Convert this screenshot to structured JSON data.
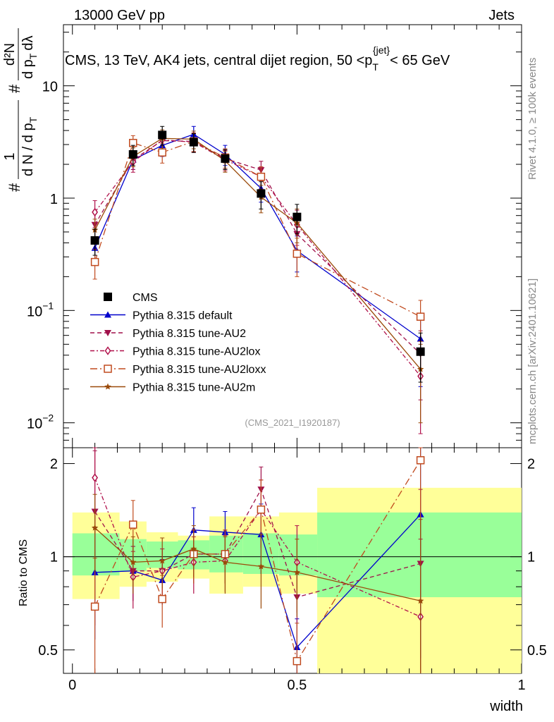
{
  "header": {
    "left": "13000 GeV pp",
    "right": "Jets"
  },
  "side_labels": {
    "rivet": "Rivet 4.1.0, ≥ 100k events",
    "mcplots": "mcplots.cern.ch [arXiv:2401.10621]"
  },
  "colors": {
    "CMS": "#000000",
    "default": "#0000cc",
    "AU2": "#a0104a",
    "AU2lox": "#b0104a",
    "AU2loxx": "#c04a1e",
    "AU2m": "#9a4a0a",
    "band_inner": "#99ff99",
    "band_outer": "#ffff99"
  },
  "chart_data": [
    {
      "type": "line",
      "panel": "main",
      "title": "CMS, 13 TeV, AK4 jets, central dijet region, 50 <p_T^{jet}< 65 GeV",
      "title_parts": {
        "pre": "CMS, 13 TeV, AK4 jets, central dijet region, 50 <p",
        "sub": "T",
        "sup": "{jet}",
        "post": "< 65 GeV"
      },
      "ylabel": "1/dN/dp_T # d²N/(dp_T dλ)",
      "ylabel_parts": {
        "hash": "#",
        "one": "1",
        "dN": "d N / d p",
        "T": "T",
        "d2N": "d²N",
        "dpdl": "d p",
        "dl": "dλ"
      },
      "yscale": "log",
      "ylim": [
        0.006,
        35
      ],
      "xlim": [
        -0.02,
        1.0
      ],
      "yticks": [
        {
          "v": 0.01,
          "label": "10",
          "exp": "−2"
        },
        {
          "v": 0.1,
          "label": "10",
          "exp": "−1"
        },
        {
          "v": 1,
          "label": "1",
          "exp": ""
        },
        {
          "v": 10,
          "label": "10",
          "exp": ""
        }
      ],
      "watermark": "(CMS_2021_I1920187)",
      "x": [
        0.05,
        0.135,
        0.2,
        0.27,
        0.34,
        0.42,
        0.5,
        0.775
      ],
      "series": [
        {
          "name": "CMS",
          "key": "CMS",
          "marker": "square-filled",
          "line": "none",
          "values": [
            0.42,
            2.45,
            3.65,
            3.15,
            2.25,
            1.1,
            0.68,
            0.043
          ],
          "err": [
            0.11,
            0.5,
            0.7,
            0.6,
            0.45,
            0.3,
            0.2,
            0.02
          ]
        },
        {
          "name": "Pythia 8.315 default",
          "key": "default",
          "marker": "triangle-up",
          "line": "solid",
          "values": [
            0.36,
            2.2,
            2.95,
            3.7,
            2.45,
            1.22,
            0.34,
            0.056
          ],
          "err": [
            0.09,
            0.4,
            0.6,
            0.65,
            0.5,
            0.3,
            0.12,
            0.035
          ]
        },
        {
          "name": "Pythia 8.315 tune-AU2",
          "key": "AU2",
          "marker": "triangle-down",
          "line": "dashed",
          "values": [
            0.58,
            2.2,
            3.25,
            3.2,
            2.25,
            1.78,
            0.48,
            0.041
          ],
          "err": [
            0.15,
            0.4,
            0.6,
            0.6,
            0.45,
            0.35,
            0.15,
            0.025
          ]
        },
        {
          "name": "Pythia 8.315 tune-AU2lox",
          "key": "AU2lox",
          "marker": "diamond-open",
          "line": "dashdot",
          "values": [
            0.75,
            2.1,
            3.3,
            3.15,
            2.2,
            1.55,
            0.58,
            0.026
          ],
          "err": [
            0.2,
            0.4,
            0.6,
            0.6,
            0.45,
            0.35,
            0.2,
            0.018
          ]
        },
        {
          "name": "Pythia 8.315 tune-AU2loxx",
          "key": "AU2loxx",
          "marker": "square-open",
          "line": "longdashdot",
          "values": [
            0.27,
            3.1,
            2.55,
            3.2,
            2.3,
            1.55,
            0.32,
            0.088
          ],
          "err": [
            0.08,
            0.5,
            0.5,
            0.6,
            0.45,
            0.35,
            0.12,
            0.035
          ]
        },
        {
          "name": "Pythia 8.315 tune-AU2m",
          "key": "AU2m",
          "marker": "star",
          "line": "solid",
          "values": [
            0.52,
            2.35,
            3.4,
            3.35,
            2.15,
            1.02,
            0.6,
            0.03
          ],
          "err": [
            0.13,
            0.45,
            0.65,
            0.6,
            0.45,
            0.28,
            0.2,
            0.02
          ]
        }
      ],
      "legend": [
        "CMS",
        "Pythia 8.315 default",
        "Pythia 8.315 tune-AU2",
        "Pythia 8.315 tune-AU2lox",
        "Pythia 8.315 tune-AU2loxx",
        "Pythia 8.315 tune-AU2m"
      ],
      "legend_placement": "bottom-left"
    },
    {
      "type": "line",
      "panel": "ratio",
      "ylabel": "Ratio to CMS",
      "xlabel": "width",
      "ylim": [
        0.42,
        2.25
      ],
      "xlim": [
        -0.02,
        1.0
      ],
      "yscale": "log",
      "yticks": [
        {
          "v": 0.5,
          "label": "0.5"
        },
        {
          "v": 1,
          "label": "1"
        },
        {
          "v": 2,
          "label": "2"
        }
      ],
      "xticks": [
        {
          "v": 0,
          "label": "0"
        },
        {
          "v": 0.5,
          "label": "0.5"
        },
        {
          "v": 1,
          "label": "1"
        }
      ],
      "bands": [
        {
          "x0": 0.0,
          "x1": 0.105,
          "inner": [
            0.87,
            1.19
          ],
          "outer": [
            0.73,
            1.39
          ]
        },
        {
          "x0": 0.105,
          "x1": 0.165,
          "inner": [
            0.9,
            1.14
          ],
          "outer": [
            0.8,
            1.3
          ]
        },
        {
          "x0": 0.165,
          "x1": 0.235,
          "inner": [
            0.92,
            1.12
          ],
          "outer": [
            0.83,
            1.2
          ]
        },
        {
          "x0": 0.235,
          "x1": 0.305,
          "inner": [
            0.91,
            1.13
          ],
          "outer": [
            0.85,
            1.17
          ]
        },
        {
          "x0": 0.305,
          "x1": 0.38,
          "inner": [
            0.89,
            1.17
          ],
          "outer": [
            0.76,
            1.35
          ]
        },
        {
          "x0": 0.38,
          "x1": 0.46,
          "inner": [
            0.88,
            1.19
          ],
          "outer": [
            0.8,
            1.35
          ]
        },
        {
          "x0": 0.46,
          "x1": 0.545,
          "inner": [
            0.87,
            1.18
          ],
          "outer": [
            0.76,
            1.39
          ]
        },
        {
          "x0": 0.545,
          "x1": 1.0,
          "inner": [
            0.74,
            1.39
          ],
          "outer": [
            0.42,
            1.67
          ]
        }
      ],
      "x": [
        0.05,
        0.135,
        0.2,
        0.27,
        0.34,
        0.42,
        0.5,
        0.775
      ],
      "series": [
        {
          "name": "Pythia 8.315 default",
          "key": "default",
          "values": [
            0.89,
            0.9,
            0.84,
            1.22,
            1.2,
            1.18,
            0.51,
            1.37
          ],
          "err": [
            0.35,
            0.18,
            0.14,
            0.22,
            0.2,
            0.3,
            0.12,
            0.9
          ]
        },
        {
          "name": "Pythia 8.315 tune-AU2",
          "key": "AU2",
          "values": [
            1.4,
            0.9,
            0.9,
            1.02,
            1.02,
            1.65,
            0.74,
            0.95
          ],
          "err": [
            0.8,
            0.18,
            0.16,
            0.2,
            0.2,
            0.3,
            0.22,
            0.7
          ]
        },
        {
          "name": "Pythia 8.315 tune-AU2lox",
          "key": "AU2lox",
          "values": [
            1.8,
            0.86,
            0.9,
            0.96,
            0.97,
            1.42,
            0.96,
            0.64
          ],
          "err": [
            0.6,
            0.18,
            0.16,
            0.2,
            0.2,
            0.35,
            0.3,
            0.5
          ]
        },
        {
          "name": "Pythia 8.315 tune-AU2loxx",
          "key": "AU2loxx",
          "values": [
            0.69,
            1.27,
            0.73,
            1.02,
            1.02,
            1.42,
            0.46,
            2.05
          ],
          "err": [
            0.3,
            0.25,
            0.14,
            0.2,
            0.2,
            0.35,
            0.15,
            0.9
          ]
        },
        {
          "name": "Pythia 8.315 tune-AU2m",
          "key": "AU2m",
          "values": [
            1.24,
            0.96,
            0.97,
            1.06,
            0.96,
            0.93,
            0.89,
            0.72
          ],
          "err": [
            0.35,
            0.2,
            0.18,
            0.2,
            0.2,
            0.25,
            0.25,
            0.6
          ]
        }
      ]
    }
  ]
}
